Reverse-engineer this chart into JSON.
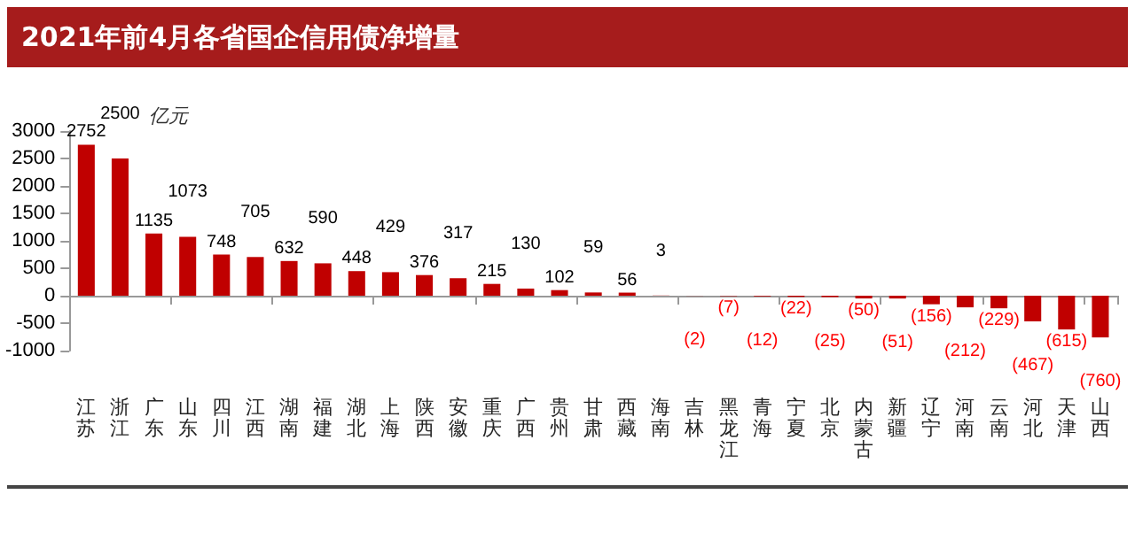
{
  "chart_data": {
    "type": "bar",
    "title": "2021年前4月各省国企信用债净增量",
    "annotations": [
      "亿元"
    ],
    "categories": [
      "江苏",
      "浙江",
      "广东",
      "山东",
      "四川",
      "江西",
      "湖南",
      "福建",
      "湖北",
      "上海",
      "陕西",
      "安徽",
      "重庆",
      "广西",
      "贵州",
      "甘肃",
      "西藏",
      "海南",
      "吉林",
      "黑龙江",
      "青海",
      "宁夏",
      "北京",
      "内蒙古",
      "新疆",
      "辽宁",
      "河南",
      "云南",
      "河北",
      "天津",
      "山西"
    ],
    "values": [
      2752,
      2500,
      1135,
      1073,
      748,
      705,
      632,
      590,
      448,
      429,
      376,
      317,
      215,
      130,
      102,
      59,
      56,
      3,
      -2,
      -7,
      -12,
      -22,
      -25,
      -50,
      -51,
      -156,
      -212,
      -229,
      -467,
      -615,
      -760
    ],
    "value_labels": [
      "2752",
      "2500",
      "1135",
      "1073",
      "748",
      "705",
      "632",
      "590",
      "448",
      "429",
      "376",
      "317",
      "215",
      "130",
      "102",
      "59",
      "56",
      "3",
      "(2)",
      "(7)",
      "(12)",
      "(22)",
      "(25)",
      "(50)",
      "(51)",
      "(156)",
      "(212)",
      "(229)",
      "(467)",
      "(615)",
      "(760)"
    ],
    "color": "#c00000",
    "ylim": [
      -1000,
      3000
    ],
    "yticks": [
      -1000,
      -500,
      0,
      500,
      1000,
      1500,
      2000,
      2500,
      3000
    ]
  }
}
